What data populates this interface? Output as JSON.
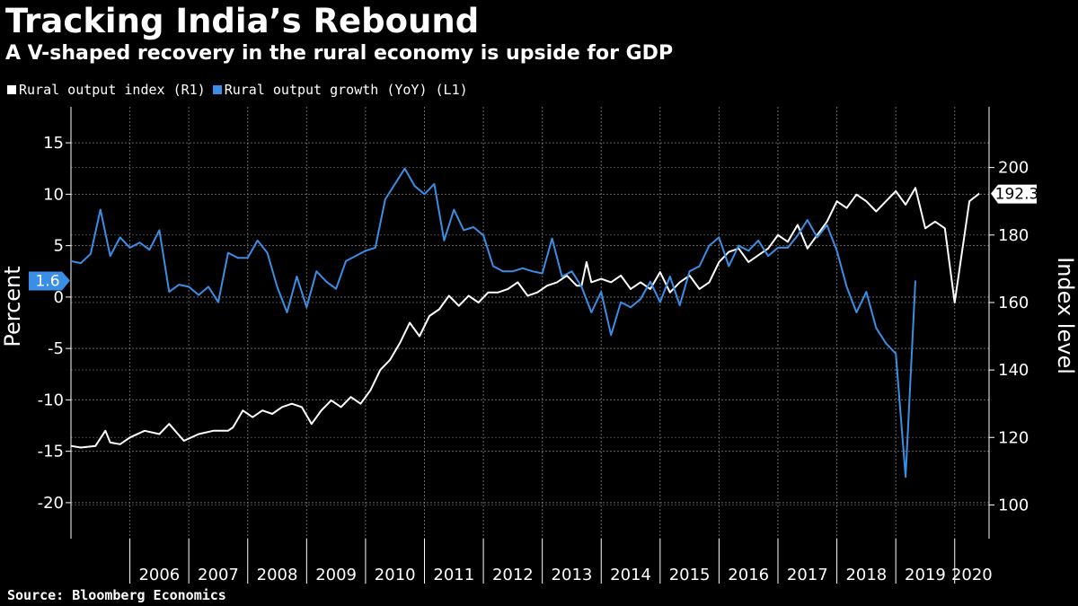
{
  "title": "Tracking India’s Rebound",
  "subtitle": "A V-shaped recovery in the rural economy is upside for GDP",
  "source": "Source: Bloomberg Economics",
  "colors": {
    "background": "#000000",
    "index_line": "#ffffff",
    "growth_line": "#3a8ee6",
    "grid": "#666666"
  },
  "chart_data": {
    "type": "line",
    "x_axis": {
      "tick_labels": [
        "2006",
        "2007",
        "2008",
        "2009",
        "2010",
        "2011",
        "2012",
        "2013",
        "2014",
        "2015",
        "2016",
        "2017",
        "2018",
        "2019",
        "2020"
      ],
      "range": [
        "2005-01",
        "2020-08"
      ]
    },
    "y_left": {
      "label": "Percent",
      "ticks": [
        15,
        10,
        5,
        0,
        -5,
        -10,
        -15,
        -20
      ],
      "range": [
        -23.5,
        18.5
      ]
    },
    "y_right": {
      "label": "Index level",
      "ticks": [
        200,
        180,
        160,
        140,
        120,
        100
      ],
      "range": [
        90,
        218
      ]
    },
    "grid": true,
    "legend_position": "top-left",
    "series": [
      {
        "name": "Rural output index (R1)",
        "axis": "right",
        "color": "#ffffff",
        "last_value_label": "192.3",
        "points": [
          [
            "2005-01",
            117.5
          ],
          [
            "2005-03",
            117
          ],
          [
            "2005-06",
            117.5
          ],
          [
            "2005-08",
            122
          ],
          [
            "2005-09",
            118.5
          ],
          [
            "2005-11",
            118
          ],
          [
            "2006-01",
            120
          ],
          [
            "2006-04",
            122
          ],
          [
            "2006-07",
            121
          ],
          [
            "2006-09",
            124
          ],
          [
            "2006-12",
            119
          ],
          [
            "2007-03",
            121
          ],
          [
            "2007-06",
            122
          ],
          [
            "2007-09",
            122
          ],
          [
            "2007-10",
            123
          ],
          [
            "2007-12",
            128
          ],
          [
            "2008-02",
            126
          ],
          [
            "2008-04",
            128
          ],
          [
            "2008-06",
            127
          ],
          [
            "2008-08",
            129
          ],
          [
            "2008-10",
            130
          ],
          [
            "2008-12",
            129
          ],
          [
            "2009-02",
            124
          ],
          [
            "2009-04",
            128
          ],
          [
            "2009-06",
            131
          ],
          [
            "2009-08",
            129
          ],
          [
            "2009-10",
            132
          ],
          [
            "2009-12",
            130
          ],
          [
            "2010-02",
            134
          ],
          [
            "2010-04",
            140
          ],
          [
            "2010-06",
            143
          ],
          [
            "2010-08",
            148
          ],
          [
            "2010-10",
            154
          ],
          [
            "2010-12",
            150
          ],
          [
            "2011-02",
            156
          ],
          [
            "2011-04",
            158
          ],
          [
            "2011-06",
            162
          ],
          [
            "2011-08",
            159
          ],
          [
            "2011-10",
            162
          ],
          [
            "2011-12",
            160
          ],
          [
            "2012-02",
            163
          ],
          [
            "2012-04",
            163
          ],
          [
            "2012-06",
            164
          ],
          [
            "2012-08",
            166
          ],
          [
            "2012-10",
            162
          ],
          [
            "2012-12",
            163
          ],
          [
            "2013-02",
            165
          ],
          [
            "2013-04",
            166
          ],
          [
            "2013-06",
            168
          ],
          [
            "2013-08",
            165
          ],
          [
            "2013-09",
            165
          ],
          [
            "2013-10",
            172
          ],
          [
            "2013-11",
            166
          ],
          [
            "2014-01",
            167
          ],
          [
            "2014-03",
            166
          ],
          [
            "2014-05",
            168
          ],
          [
            "2014-07",
            164
          ],
          [
            "2014-09",
            166
          ],
          [
            "2014-11",
            164
          ],
          [
            "2015-01",
            169
          ],
          [
            "2015-03",
            163
          ],
          [
            "2015-05",
            166
          ],
          [
            "2015-07",
            168
          ],
          [
            "2015-09",
            164
          ],
          [
            "2015-11",
            166
          ],
          [
            "2016-01",
            172
          ],
          [
            "2016-03",
            175
          ],
          [
            "2016-05",
            176
          ],
          [
            "2016-07",
            172
          ],
          [
            "2016-09",
            174
          ],
          [
            "2016-11",
            176
          ],
          [
            "2017-01",
            180
          ],
          [
            "2017-03",
            178
          ],
          [
            "2017-05",
            183
          ],
          [
            "2017-07",
            176
          ],
          [
            "2017-09",
            180
          ],
          [
            "2017-11",
            184
          ],
          [
            "2018-01",
            190
          ],
          [
            "2018-03",
            188
          ],
          [
            "2018-05",
            192
          ],
          [
            "2018-07",
            190
          ],
          [
            "2018-09",
            187
          ],
          [
            "2018-11",
            190
          ],
          [
            "2019-01",
            193
          ],
          [
            "2019-03",
            189
          ],
          [
            "2019-05",
            194
          ],
          [
            "2019-07",
            182
          ],
          [
            "2019-09",
            184
          ],
          [
            "2019-11",
            182
          ],
          [
            "2020-01",
            160
          ],
          [
            "2020-04",
            190
          ],
          [
            "2020-06",
            192.3
          ]
        ]
      },
      {
        "name": "Rural output growth (YoY) (L1)",
        "axis": "left",
        "color": "#3a8ee6",
        "last_value_label": "1.6",
        "points": [
          [
            "2005-01",
            3.5
          ],
          [
            "2005-03",
            3.3
          ],
          [
            "2005-05",
            4.2
          ],
          [
            "2005-07",
            8.5
          ],
          [
            "2005-09",
            4.0
          ],
          [
            "2005-11",
            5.8
          ],
          [
            "2006-01",
            4.8
          ],
          [
            "2006-03",
            5.3
          ],
          [
            "2006-05",
            4.6
          ],
          [
            "2006-07",
            6.5
          ],
          [
            "2006-09",
            0.5
          ],
          [
            "2006-11",
            1.2
          ],
          [
            "2007-01",
            1.0
          ],
          [
            "2007-03",
            0.2
          ],
          [
            "2007-05",
            1.0
          ],
          [
            "2007-07",
            -0.5
          ],
          [
            "2007-09",
            4.3
          ],
          [
            "2007-11",
            3.8
          ],
          [
            "2008-01",
            3.8
          ],
          [
            "2008-03",
            5.5
          ],
          [
            "2008-05",
            4.3
          ],
          [
            "2008-07",
            1.0
          ],
          [
            "2008-09",
            -1.5
          ],
          [
            "2008-11",
            2.0
          ],
          [
            "2009-01",
            -1.0
          ],
          [
            "2009-03",
            2.5
          ],
          [
            "2009-05",
            1.5
          ],
          [
            "2009-07",
            0.8
          ],
          [
            "2009-09",
            3.5
          ],
          [
            "2009-11",
            4.0
          ],
          [
            "2010-01",
            4.5
          ],
          [
            "2010-03",
            4.8
          ],
          [
            "2010-05",
            9.5
          ],
          [
            "2010-07",
            11.0
          ],
          [
            "2010-09",
            12.5
          ],
          [
            "2010-11",
            10.8
          ],
          [
            "2011-01",
            10.0
          ],
          [
            "2011-03",
            11.0
          ],
          [
            "2011-05",
            5.5
          ],
          [
            "2011-07",
            8.5
          ],
          [
            "2011-09",
            6.5
          ],
          [
            "2011-11",
            6.8
          ],
          [
            "2012-01",
            6.0
          ],
          [
            "2012-03",
            3.0
          ],
          [
            "2012-05",
            2.5
          ],
          [
            "2012-07",
            2.5
          ],
          [
            "2012-09",
            2.8
          ],
          [
            "2012-11",
            2.5
          ],
          [
            "2013-01",
            2.3
          ],
          [
            "2013-03",
            5.7
          ],
          [
            "2013-05",
            2.0
          ],
          [
            "2013-07",
            2.5
          ],
          [
            "2013-09",
            1.0
          ],
          [
            "2013-11",
            -1.5
          ],
          [
            "2014-01",
            0.5
          ],
          [
            "2014-03",
            -3.7
          ],
          [
            "2014-05",
            -0.5
          ],
          [
            "2014-07",
            -1.0
          ],
          [
            "2014-09",
            -0.2
          ],
          [
            "2014-11",
            1.5
          ],
          [
            "2015-01",
            -0.5
          ],
          [
            "2015-03",
            2.0
          ],
          [
            "2015-05",
            -0.8
          ],
          [
            "2015-07",
            2.5
          ],
          [
            "2015-09",
            3.0
          ],
          [
            "2015-11",
            5.0
          ],
          [
            "2016-01",
            5.8
          ],
          [
            "2016-03",
            3.0
          ],
          [
            "2016-05",
            5.0
          ],
          [
            "2016-07",
            4.5
          ],
          [
            "2016-09",
            5.5
          ],
          [
            "2016-11",
            4.0
          ],
          [
            "2017-01",
            4.8
          ],
          [
            "2017-03",
            4.8
          ],
          [
            "2017-05",
            6.0
          ],
          [
            "2017-07",
            7.5
          ],
          [
            "2017-09",
            5.8
          ],
          [
            "2017-11",
            7.0
          ],
          [
            "2018-01",
            4.5
          ],
          [
            "2018-03",
            1.0
          ],
          [
            "2018-05",
            -1.5
          ],
          [
            "2018-07",
            0.5
          ],
          [
            "2018-09",
            -3.0
          ],
          [
            "2018-11",
            -4.5
          ],
          [
            "2019-01",
            -5.5
          ],
          [
            "2019-03",
            -17.5
          ],
          [
            "2019-05",
            1.6
          ]
        ]
      }
    ]
  }
}
